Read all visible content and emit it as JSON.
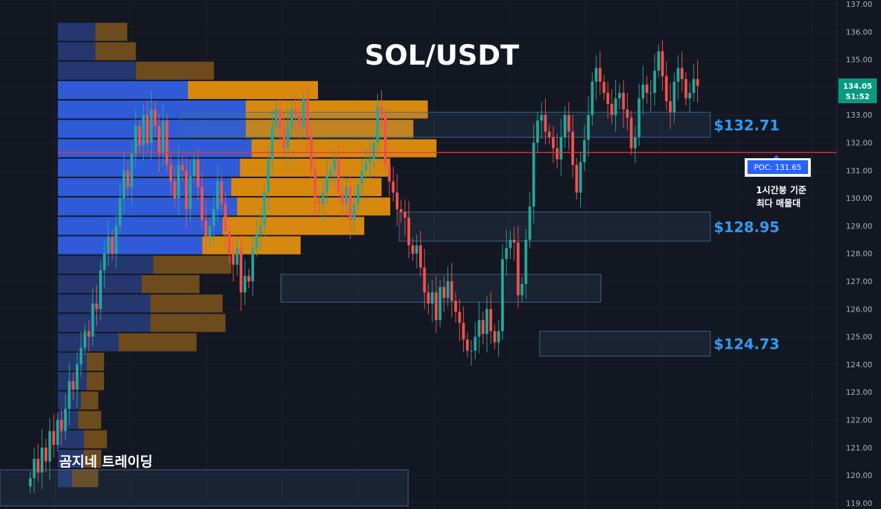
{
  "chart_data": {
    "type": "candlestick",
    "title": "SOL/USDT",
    "ylim": [
      119,
      137
    ],
    "y_ticks": [
      "119.00",
      "120.00",
      "121.00",
      "122.00",
      "123.00",
      "124.00",
      "125.00",
      "126.00",
      "127.00",
      "128.00",
      "129.00",
      "130.00",
      "131.00",
      "132.00",
      "133.00",
      "134.00",
      "135.00",
      "136.00",
      "137.00"
    ],
    "grid": true,
    "current_price": {
      "value": 134.05,
      "label": "134.05",
      "countdown": "51:52"
    },
    "poc": {
      "value": 131.65,
      "label": "POC: 131.65",
      "note_line1": "1시간봉 기준",
      "note_line2": "최다 매물대"
    },
    "brand": "곰지네 트레이딩",
    "zones": [
      {
        "low": 132.2,
        "high": 133.1,
        "label": "$132.71"
      },
      {
        "low": 128.45,
        "high": 129.5,
        "label": "$128.95"
      },
      {
        "low": 126.25,
        "high": 127.25,
        "label": ""
      },
      {
        "low": 124.3,
        "high": 125.2,
        "label": "$124.73"
      },
      {
        "low": 118.9,
        "high": 120.2,
        "label": ""
      }
    ],
    "volume_profile": [
      {
        "price": 136.0,
        "buy": 0.13,
        "sell": 0.11
      },
      {
        "price": 135.3,
        "buy": 0.13,
        "sell": 0.14
      },
      {
        "price": 134.6,
        "buy": 0.27,
        "sell": 0.27
      },
      {
        "price": 133.9,
        "buy": 0.45,
        "sell": 0.45
      },
      {
        "price": 133.2,
        "buy": 0.65,
        "sell": 0.63
      },
      {
        "price": 132.5,
        "buy": 0.65,
        "sell": 0.58
      },
      {
        "price": 131.8,
        "buy": 0.67,
        "sell": 0.64
      },
      {
        "price": 131.1,
        "buy": 0.63,
        "sell": 0.52
      },
      {
        "price": 130.4,
        "buy": 0.6,
        "sell": 0.52
      },
      {
        "price": 129.7,
        "buy": 0.62,
        "sell": 0.53
      },
      {
        "price": 129.0,
        "buy": 0.57,
        "sell": 0.49
      },
      {
        "price": 128.3,
        "buy": 0.5,
        "sell": 0.34
      },
      {
        "price": 127.6,
        "buy": 0.33,
        "sell": 0.27
      },
      {
        "price": 126.9,
        "buy": 0.29,
        "sell": 0.2
      },
      {
        "price": 126.2,
        "buy": 0.32,
        "sell": 0.25
      },
      {
        "price": 125.5,
        "buy": 0.32,
        "sell": 0.26
      },
      {
        "price": 124.8,
        "buy": 0.21,
        "sell": 0.27
      },
      {
        "price": 124.1,
        "buy": 0.1,
        "sell": 0.06
      },
      {
        "price": 123.4,
        "buy": 0.1,
        "sell": 0.06
      },
      {
        "price": 122.7,
        "buy": 0.08,
        "sell": 0.06
      },
      {
        "price": 122.0,
        "buy": 0.07,
        "sell": 0.08
      },
      {
        "price": 121.3,
        "buy": 0.09,
        "sell": 0.08
      },
      {
        "price": 120.6,
        "buy": 0.09,
        "sell": 0.06
      },
      {
        "price": 119.9,
        "buy": 0.05,
        "sell": 0.09
      }
    ],
    "closes": [
      119.9,
      120.6,
      120.1,
      121.0,
      120.5,
      121.6,
      121.1,
      122.0,
      121.6,
      122.4,
      123.4,
      123.1,
      124.0,
      124.6,
      125.2,
      125.0,
      126.2,
      126.0,
      127.4,
      128.0,
      128.6,
      128.0,
      129.0,
      130.0,
      131.0,
      130.4,
      131.6,
      132.6,
      131.9,
      133.0,
      132.0,
      133.2,
      132.6,
      131.6,
      132.8,
      131.2,
      130.6,
      130.0,
      131.2,
      131.0,
      129.6,
      130.8,
      131.4,
      130.4,
      129.2,
      128.6,
      129.0,
      129.6,
      130.6,
      129.8,
      128.8,
      128.0,
      127.6,
      128.2,
      126.6,
      127.2,
      127.0,
      128.2,
      128.7,
      129.0,
      130.2,
      131.4,
      132.6,
      133.2,
      132.5,
      131.8,
      132.6,
      133.2,
      133.0,
      132.6,
      133.6,
      132.2,
      131.0,
      130.0,
      129.8,
      130.2,
      130.8,
      131.0,
      131.4,
      130.2,
      129.8,
      130.4,
      129.2,
      129.8,
      130.5,
      131.0,
      131.3,
      131.4,
      132.0,
      133.3,
      133.0,
      131.2,
      130.6,
      130.2,
      129.6,
      129.5,
      129.3,
      128.3,
      128.0,
      128.3,
      127.5,
      126.6,
      126.2,
      126.6,
      125.6,
      126.8,
      126.4,
      127.0,
      126.3,
      125.9,
      125.5,
      124.9,
      124.5,
      124.5,
      125.0,
      125.6,
      125.1,
      126.0,
      125.2,
      124.8,
      125.2,
      127.8,
      128.2,
      128.5,
      128.4,
      126.5,
      126.9,
      128.5,
      129.7,
      132.0,
      132.8,
      133.0,
      132.4,
      132.2,
      131.8,
      131.4,
      132.2,
      133.0,
      132.4,
      131.2,
      130.2,
      131.3,
      132.1,
      133.0,
      134.2,
      134.7,
      134.2,
      133.8,
      133.4,
      133.0,
      133.6,
      133.8,
      133.2,
      132.9,
      131.8,
      132.2,
      133.6,
      134.1,
      133.8,
      133.8,
      134.6,
      135.3,
      134.4,
      133.5,
      133.1,
      134.2,
      134.7,
      134.3,
      133.6,
      133.8,
      134.3,
      134.05
    ]
  }
}
